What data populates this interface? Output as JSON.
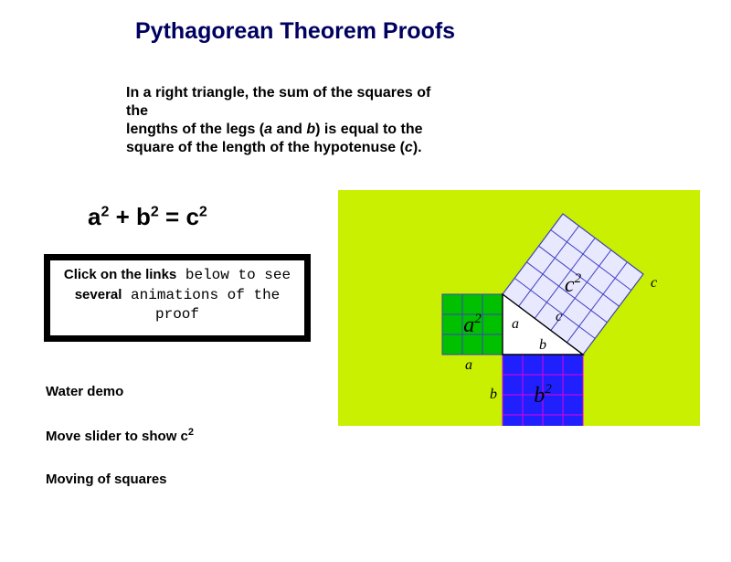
{
  "title": "Pythagorean Theorem Proofs",
  "intro": {
    "line1": "In a right triangle, the sum of the squares of the",
    "line2a": "lengths of the legs (",
    "line2b": "a",
    "line2c": " and ",
    "line2d": "b",
    "line2e": ") is equal to the",
    "line3a": "square of the length of the hypotenuse (",
    "line3b": "c",
    "line3c": ")."
  },
  "formula": {
    "a": "a",
    "b": "b",
    "c": "c",
    "plus": " + ",
    "eq": " = ",
    "exp": "2"
  },
  "box": {
    "t1": "Click on the links",
    "t2": "  below to see",
    "t3": "several",
    "t4": "  animations of the",
    "t5": "proof"
  },
  "links": {
    "l1": "Water demo",
    "l2a": "Move slider to show c",
    "l2exp": "2",
    "l3": "Moving of squares"
  },
  "diagram": {
    "background": "#c8f000",
    "grid": "#4040c0",
    "a_fill": "#00c000",
    "a_stroke": "#4040c0",
    "b_fill": "#2020ff",
    "b_stroke": "#e000e0",
    "c_fill": "#e8e8ff",
    "c_stroke": "#4040c0",
    "tri_fill": "#ffffff",
    "tri_stroke": "#000000",
    "label_color": "#000000",
    "label_font": "italic 24px 'Times New Roman', serif",
    "small_label_font": "italic 16px 'Times New Roman', serif",
    "a_label": "a",
    "b_label": "b",
    "c_label": "c",
    "a2_label_a": "a",
    "a2_exp": "2",
    "b2_label_b": "b",
    "b2_exp": "2",
    "c2_label_c": "c",
    "c2_exp": "2",
    "a_cells": 3,
    "b_cells": 4,
    "c_cells": 5
  }
}
